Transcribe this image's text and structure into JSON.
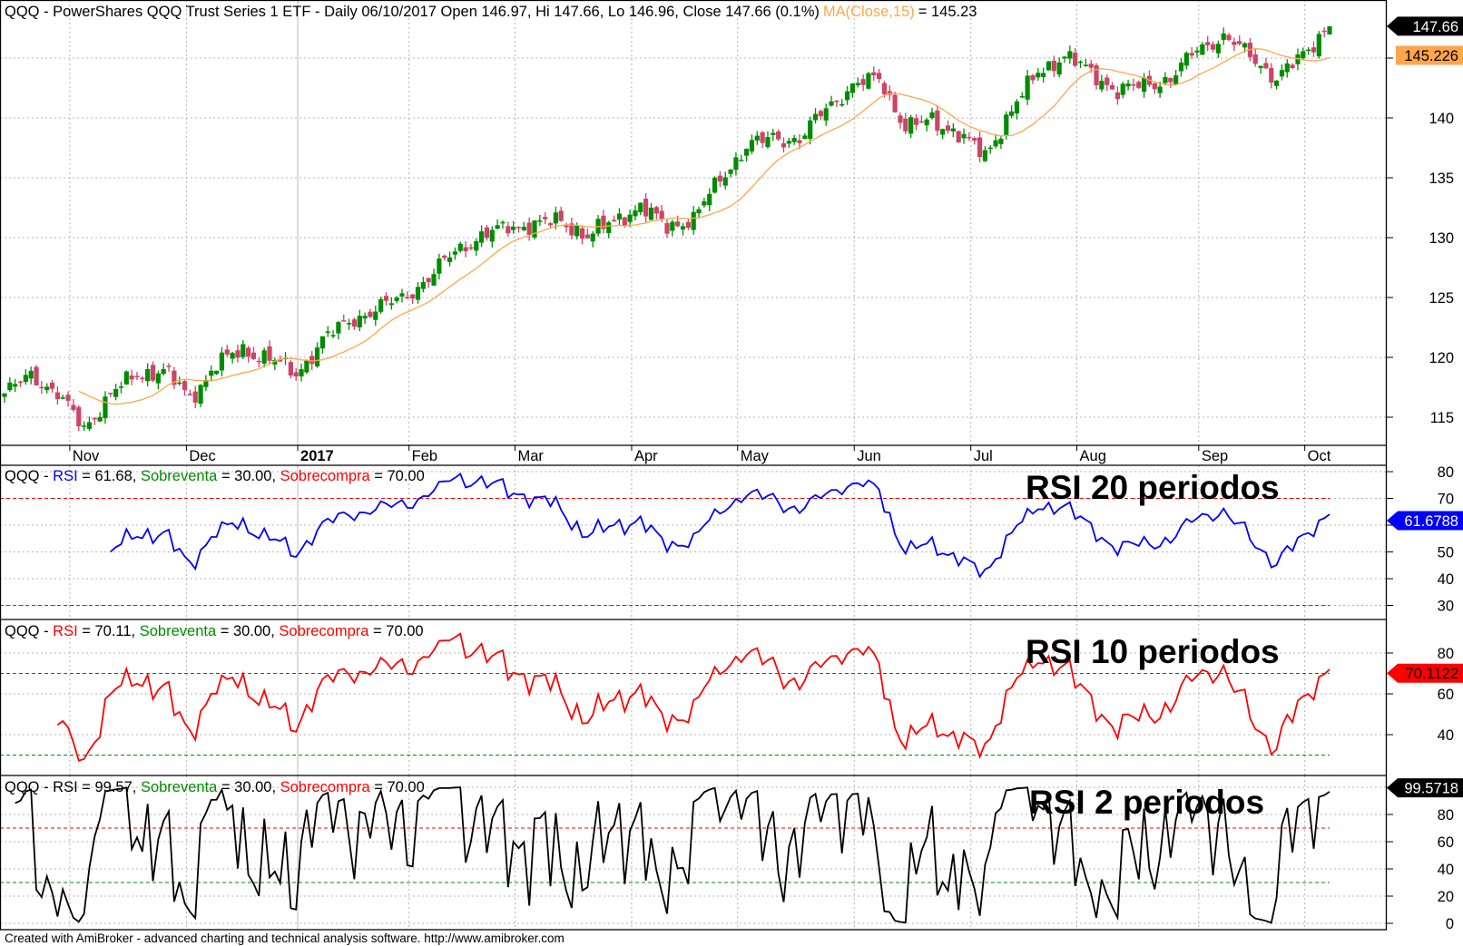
{
  "title": {
    "text": "QQQ - PowerShares QQQ Trust Series 1 ETF - Daily 06/10/2017 Open 146.97, Hi 147.66, Lo 146.96, Close 147.66 (0.1%)",
    "ma_label": "MA(Close,15)",
    "ma_value": "= 145.23"
  },
  "colors": {
    "up": "#008c00",
    "down": "#cc4466",
    "ma": "#ffa64d",
    "grid": "#b4b4b4",
    "overbought": "#ff0000",
    "oversold": "#008c00"
  },
  "price_axis": {
    "ticks": [
      "115",
      "120",
      "125",
      "130",
      "135",
      "140"
    ],
    "last_close_box": "147.66",
    "ma_box": "145.226"
  },
  "x_axis": {
    "months": [
      "Nov",
      "Dec",
      "2017",
      "Feb",
      "Mar",
      "Apr",
      "May",
      "Jun",
      "Jul",
      "Aug",
      "Sep",
      "Oct"
    ]
  },
  "panels": [
    {
      "legend": {
        "prefix": "QQQ - ",
        "rsi": "RSI",
        "rsi_value": " = 61.68, ",
        "oversold": "Sobreventa",
        "oversold_value": " = 30.00, ",
        "overbought": "Sobrecompra",
        "overbought_value": " = 70.00"
      },
      "annotation": "RSI 20 periodos",
      "ticks": [
        "80",
        "70",
        "50",
        "40",
        "30"
      ],
      "value_box": "61.6788",
      "color": "#0000ff"
    },
    {
      "legend": {
        "prefix": "QQQ - ",
        "rsi": "RSI",
        "rsi_value": " = 70.11, ",
        "oversold": "Sobreventa",
        "oversold_value": " = 30.00, ",
        "overbought": "Sobrecompra",
        "overbought_value": " = 70.00"
      },
      "annotation": "RSI 10 periodos",
      "ticks": [
        "80",
        "60",
        "40"
      ],
      "value_box": "70.1122",
      "color": "#ff0000"
    },
    {
      "legend": {
        "prefix": "QQQ - ",
        "rsi": "RSI",
        "rsi_value": " = 99.57, ",
        "oversold": "Sobreventa",
        "oversold_value": " = 30.00, ",
        "overbought": "Sobrecompra",
        "overbought_value": " = 70.00"
      },
      "annotation": "RSI 2 periodos",
      "ticks": [
        "80",
        "60",
        "40",
        "20",
        "0"
      ],
      "value_box": "99.5718",
      "color": "#000000"
    }
  ],
  "chart_data": [
    {
      "type": "candlestick",
      "symbol": "QQQ",
      "interval": "Daily",
      "weekly_closes": [
        117,
        118.5,
        117,
        114,
        117,
        118.5,
        119,
        116.5,
        119.5,
        120.5,
        120,
        118.5,
        121.5,
        123,
        124,
        125,
        126.5,
        129,
        130,
        131,
        131,
        131.5,
        130,
        131.5,
        132.5,
        131,
        131.5,
        135,
        137.5,
        138.5,
        138,
        141,
        142.5,
        143.5,
        139,
        140,
        138.5,
        137,
        140.5,
        144,
        145,
        144,
        142,
        143,
        143,
        146,
        146.5,
        145.5,
        143,
        145.5,
        147.66
      ],
      "last_bar": {
        "date": "06/10/2017",
        "open": 146.97,
        "high": 147.66,
        "low": 146.96,
        "close": 147.66,
        "change_pct": 0.1
      },
      "overlay": {
        "type": "line",
        "name": "MA(Close,15)",
        "period": 15,
        "last": 145.226
      },
      "ylim": [
        112.5,
        150
      ]
    },
    {
      "type": "line",
      "name": "RSI",
      "period": 20,
      "last": 61.6788,
      "oversold": 30,
      "overbought": 70,
      "ylim": [
        27,
        83
      ]
    },
    {
      "type": "line",
      "name": "RSI",
      "period": 10,
      "last": 70.1122,
      "oversold": 30,
      "overbought": 70,
      "ylim": [
        24,
        87
      ]
    },
    {
      "type": "line",
      "name": "RSI",
      "period": 2,
      "last": 99.5718,
      "oversold": 30,
      "overbought": 70,
      "ylim": [
        -4,
        103
      ]
    }
  ],
  "footer": "Created with AmiBroker - advanced charting and technical analysis software. http://www.amibroker.com"
}
